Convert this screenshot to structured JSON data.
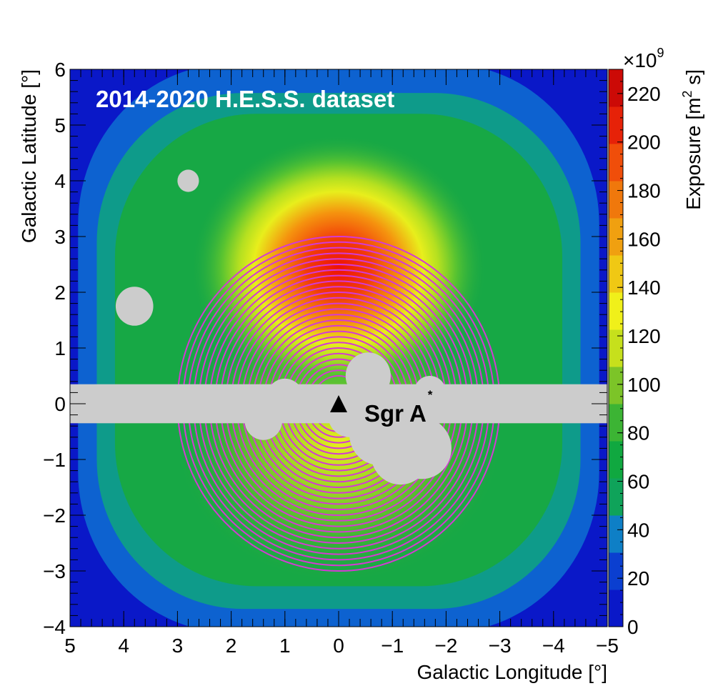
{
  "chart_data": {
    "type": "heatmap",
    "annotation_title": "2014-2020 H.E.S.S. dataset",
    "xlabel": "Galactic Longitude [°]",
    "ylabel": "Galactic Latitude [°]",
    "xlim": [
      5,
      -5
    ],
    "ylim": [
      -4,
      6
    ],
    "x_ticks": [
      5,
      4,
      3,
      2,
      1,
      0,
      -1,
      -2,
      -3,
      -4,
      -5
    ],
    "x_tick_labels": [
      "5",
      "4",
      "3",
      "2",
      "1",
      "0",
      "−1",
      "−2",
      "−3",
      "−4",
      "−5"
    ],
    "y_ticks": [
      -4,
      -3,
      -2,
      -1,
      0,
      1,
      2,
      3,
      4,
      5,
      6
    ],
    "y_tick_labels": [
      "−4",
      "−3",
      "−2",
      "−1",
      "0",
      "1",
      "2",
      "3",
      "4",
      "5",
      "6"
    ],
    "colorbar": {
      "label": "Exposure [m",
      "label_sup": "2",
      "label_tail": " s]",
      "multiplier_base": "×10",
      "multiplier_exp": "9",
      "range": [
        0,
        230
      ],
      "ticks": [
        0,
        20,
        40,
        60,
        80,
        100,
        120,
        140,
        160,
        180,
        200,
        220
      ],
      "tick_labels": [
        "0",
        "20",
        "40",
        "60",
        "80",
        "100",
        "120",
        "140",
        "160",
        "180",
        "200",
        "220"
      ],
      "colors": [
        "#0a18c8",
        "#0b3fd0",
        "#0e7fc6",
        "#0fa35a",
        "#10a840",
        "#3cb434",
        "#7cc428",
        "#c6e01c",
        "#f0f01a",
        "#f0c814",
        "#f0a010",
        "#f0780c",
        "#f04e0a",
        "#e62208",
        "#cc0a06"
      ]
    },
    "exposure_peak": {
      "l": 0.0,
      "b": 2.6,
      "value": 230,
      "sigma_l": 1.7,
      "sigma_b": 1.35
    },
    "roi_rings": {
      "center_l": 0.0,
      "center_b": 0.0,
      "inner_radius_deg": 0.5,
      "outer_radius_deg": 3.0,
      "count": 26,
      "color": "#d43ad4"
    },
    "exclusion_mask": {
      "color": "#cccccc",
      "band": {
        "b_min": -0.35,
        "b_max": 0.35
      },
      "disks": [
        {
          "l": -0.55,
          "b": 0.5,
          "r": 0.42
        },
        {
          "l": -0.75,
          "b": -0.55,
          "r": 0.55
        },
        {
          "l": -1.15,
          "b": -0.9,
          "r": 0.55
        },
        {
          "l": -1.55,
          "b": -0.8,
          "r": 0.55
        },
        {
          "l": -1.7,
          "b": 0.2,
          "r": 0.3
        },
        {
          "l": -0.2,
          "b": -0.2,
          "r": 0.4
        },
        {
          "l": 1.0,
          "b": 0.1,
          "r": 0.35
        },
        {
          "l": 1.4,
          "b": -0.3,
          "r": 0.35
        },
        {
          "l": 3.8,
          "b": 1.75,
          "r": 0.35
        },
        {
          "l": 2.8,
          "b": 4.0,
          "r": 0.2
        }
      ]
    },
    "source_marker": {
      "l": 0.0,
      "b": 0.0,
      "label": "Sgr A",
      "label_sup": "*",
      "symbol": "triangle",
      "color": "#000000"
    }
  }
}
